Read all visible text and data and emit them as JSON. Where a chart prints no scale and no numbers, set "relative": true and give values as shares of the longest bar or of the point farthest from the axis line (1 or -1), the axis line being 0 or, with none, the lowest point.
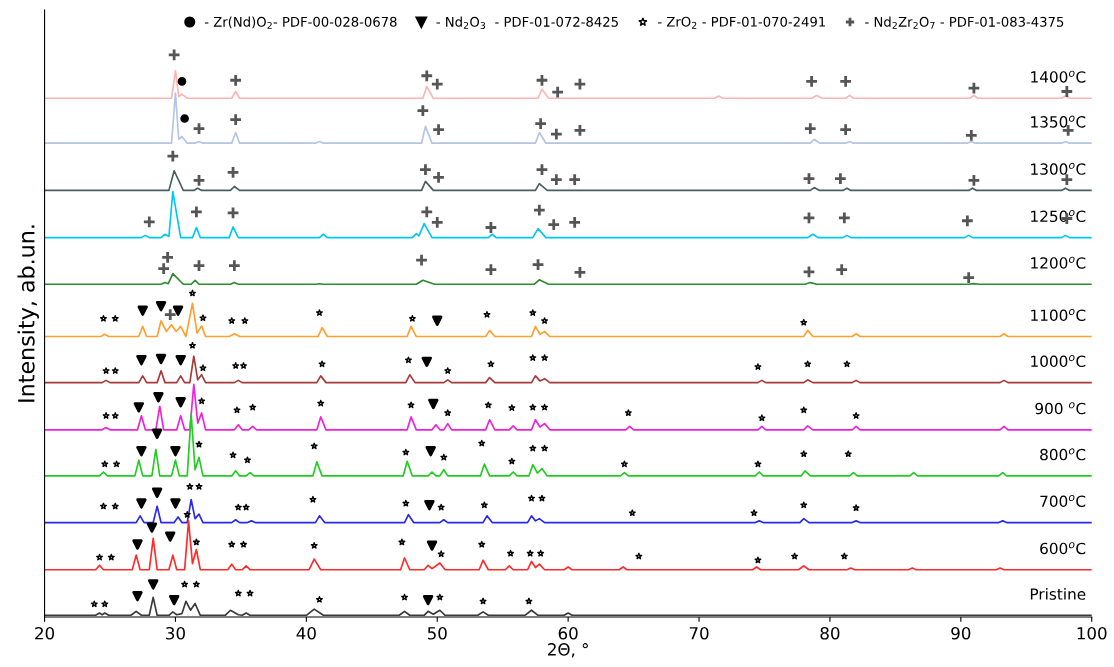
{
  "chart_data": {
    "type": "line",
    "relative": true,
    "xlabel": "2Θ, °",
    "ylabel": "Intensity, ab.un.",
    "xlim": [
      20,
      100
    ],
    "xticks": [
      20,
      30,
      40,
      50,
      60,
      70,
      80,
      90,
      100
    ],
    "grid": false,
    "legend": "top",
    "tick_labels": "x",
    "line_style": "solid",
    "series": [
      {
        "name": "Pristine",
        "color": "#3a3a3a",
        "x": [
          20,
          23.9,
          24.2,
          24.4,
          24.6,
          24.9,
          26.6,
          27.0,
          27.4,
          28.0,
          28.3,
          28.6,
          29.5,
          29.8,
          30.1,
          30.5,
          30.8,
          31.15,
          31.5,
          31.9,
          33.8,
          34.2,
          34.8,
          35.1,
          35.4,
          35.7,
          40.0,
          40.6,
          41.3,
          47.1,
          47.5,
          47.9,
          49.0,
          49.3,
          49.7,
          50.2,
          50.6,
          53.1,
          53.5,
          53.9,
          56.7,
          57.2,
          57.7,
          59.7,
          60.0,
          60.3,
          100
        ],
        "values": [
          0.003,
          0.003,
          0.007,
          0.004,
          0.007,
          0.003,
          0.003,
          0.01,
          0.003,
          0.003,
          0.035,
          0.003,
          0.003,
          0.009,
          0.004,
          0.006,
          0.028,
          0.012,
          0.024,
          0.003,
          0.003,
          0.012,
          0.004,
          0.003,
          0.007,
          0.003,
          0.003,
          0.014,
          0.003,
          0.003,
          0.01,
          0.003,
          0.003,
          0.01,
          0.005,
          0.012,
          0.003,
          0.003,
          0.009,
          0.003,
          0.003,
          0.012,
          0.003,
          0.003,
          0.007,
          0.003,
          0.003
        ]
      },
      {
        "name": "600$^{o}$C",
        "color": "#ff2a2a",
        "x": [
          20,
          23.9,
          24.2,
          24.5,
          26.7,
          27.0,
          27.3,
          28.0,
          28.3,
          28.6,
          29.5,
          29.8,
          30.1,
          30.7,
          31.0,
          31.3,
          31.6,
          31.9,
          34.0,
          34.3,
          34.6,
          35.1,
          35.4,
          35.7,
          40.2,
          40.6,
          41.1,
          47.2,
          47.5,
          47.9,
          49.0,
          49.3,
          49.6,
          50.2,
          50.6,
          53.2,
          53.5,
          53.9,
          55.2,
          55.5,
          55.8,
          56.9,
          57.2,
          57.5,
          57.8,
          58.2,
          59.7,
          60.0,
          60.3,
          63.9,
          64.2,
          64.5,
          74.1,
          74.4,
          74.7,
          77.6,
          78.0,
          78.4,
          81.3,
          81.6,
          81.9,
          86.0,
          86.3,
          86.6,
          92.7,
          93.0,
          93.3,
          100
        ],
        "values": [
          0.084,
          0.084,
          0.092,
          0.084,
          0.084,
          0.11,
          0.084,
          0.084,
          0.14,
          0.084,
          0.084,
          0.11,
          0.084,
          0.084,
          0.171,
          0.095,
          0.12,
          0.084,
          0.084,
          0.094,
          0.084,
          0.084,
          0.091,
          0.084,
          0.084,
          0.103,
          0.084,
          0.084,
          0.105,
          0.084,
          0.084,
          0.092,
          0.086,
          0.096,
          0.084,
          0.084,
          0.101,
          0.084,
          0.084,
          0.091,
          0.084,
          0.084,
          0.099,
          0.088,
          0.094,
          0.084,
          0.084,
          0.089,
          0.084,
          0.084,
          0.089,
          0.084,
          0.084,
          0.089,
          0.084,
          0.084,
          0.091,
          0.084,
          0.084,
          0.087,
          0.084,
          0.084,
          0.087,
          0.084,
          0.084,
          0.087,
          0.084,
          0.084
        ]
      },
      {
        "name": "700$^{o}$C",
        "color": "#2a2ae6",
        "x": [
          20,
          27.0,
          27.3,
          27.6,
          28.3,
          28.6,
          28.9,
          29.9,
          30.2,
          30.5,
          30.9,
          31.2,
          31.5,
          31.8,
          32.1,
          34.3,
          34.6,
          34.9,
          35.5,
          35.8,
          36.1,
          40.7,
          41.0,
          41.4,
          47.5,
          47.8,
          48.2,
          50.2,
          50.5,
          50.8,
          53.5,
          53.8,
          54.2,
          56.9,
          57.2,
          57.5,
          57.8,
          58.2,
          74.3,
          74.6,
          74.9,
          77.7,
          78.0,
          78.4,
          81.7,
          82.0,
          82.3,
          92.9,
          93.2,
          93.5,
          100
        ],
        "values": [
          0.168,
          0.168,
          0.18,
          0.168,
          0.168,
          0.197,
          0.168,
          0.168,
          0.178,
          0.168,
          0.168,
          0.209,
          0.175,
          0.183,
          0.168,
          0.168,
          0.173,
          0.168,
          0.168,
          0.171,
          0.168,
          0.168,
          0.18,
          0.168,
          0.168,
          0.182,
          0.168,
          0.168,
          0.173,
          0.168,
          0.168,
          0.18,
          0.168,
          0.168,
          0.18,
          0.171,
          0.175,
          0.168,
          0.168,
          0.171,
          0.168,
          0.168,
          0.175,
          0.168,
          0.168,
          0.171,
          0.168,
          0.168,
          0.171,
          0.168,
          0.168
        ]
      },
      {
        "name": "800$^{o}$C",
        "color": "#22cc22",
        "x": [
          20,
          24.2,
          24.5,
          24.8,
          26.9,
          27.2,
          27.5,
          28.2,
          28.5,
          28.8,
          29.7,
          30.0,
          30.3,
          30.9,
          31.2,
          31.5,
          31.8,
          32.1,
          34.3,
          34.6,
          34.9,
          35.4,
          35.7,
          36.0,
          40.5,
          40.8,
          41.2,
          47.4,
          47.7,
          48.1,
          49.3,
          49.6,
          49.9,
          50.2,
          50.5,
          50.8,
          53.3,
          53.6,
          54.0,
          55.5,
          55.8,
          56.1,
          57.0,
          57.3,
          57.65,
          58.0,
          58.4,
          64.0,
          64.3,
          64.6,
          74.3,
          74.6,
          74.9,
          77.8,
          78.1,
          78.5,
          81.5,
          81.8,
          82.1,
          86.1,
          86.4,
          86.7,
          92.9,
          93.2,
          93.5,
          100
        ],
        "values": [
          0.251,
          0.251,
          0.258,
          0.251,
          0.251,
          0.279,
          0.251,
          0.251,
          0.298,
          0.251,
          0.251,
          0.279,
          0.251,
          0.251,
          0.361,
          0.262,
          0.284,
          0.251,
          0.251,
          0.26,
          0.251,
          0.251,
          0.257,
          0.251,
          0.251,
          0.276,
          0.251,
          0.251,
          0.277,
          0.251,
          0.251,
          0.258,
          0.251,
          0.251,
          0.262,
          0.251,
          0.251,
          0.272,
          0.251,
          0.251,
          0.258,
          0.251,
          0.251,
          0.271,
          0.256,
          0.264,
          0.251,
          0.251,
          0.257,
          0.251,
          0.251,
          0.258,
          0.251,
          0.251,
          0.26,
          0.251,
          0.251,
          0.257,
          0.251,
          0.251,
          0.257,
          0.251,
          0.251,
          0.257,
          0.251,
          0.251
        ]
      },
      {
        "name": "900 $^{o}$C",
        "color": "#ee22dd",
        "x": [
          20,
          24.4,
          24.7,
          25.0,
          27.1,
          27.4,
          27.7,
          28.5,
          28.8,
          29.1,
          30.1,
          30.4,
          30.7,
          31.1,
          31.4,
          31.7,
          32.0,
          32.3,
          34.5,
          34.8,
          35.1,
          35.6,
          35.9,
          36.2,
          40.8,
          41.1,
          41.5,
          47.7,
          48.0,
          48.4,
          49.6,
          49.9,
          50.2,
          50.5,
          50.8,
          51.1,
          53.7,
          54.0,
          54.4,
          55.5,
          55.8,
          56.1,
          57.2,
          57.5,
          57.85,
          58.2,
          58.6,
          64.4,
          64.7,
          65.0,
          74.5,
          74.8,
          75.1,
          78.0,
          78.3,
          78.7,
          81.7,
          82.0,
          82.3,
          93.0,
          93.3,
          93.6,
          100
        ],
        "values": [
          0.333,
          0.333,
          0.337,
          0.333,
          0.333,
          0.358,
          0.333,
          0.333,
          0.375,
          0.333,
          0.333,
          0.358,
          0.333,
          0.333,
          0.414,
          0.345,
          0.363,
          0.333,
          0.333,
          0.342,
          0.333,
          0.333,
          0.339,
          0.333,
          0.333,
          0.356,
          0.333,
          0.333,
          0.356,
          0.333,
          0.333,
          0.342,
          0.333,
          0.333,
          0.344,
          0.333,
          0.333,
          0.351,
          0.333,
          0.333,
          0.34,
          0.333,
          0.333,
          0.351,
          0.338,
          0.344,
          0.333,
          0.333,
          0.339,
          0.333,
          0.333,
          0.339,
          0.333,
          0.333,
          0.34,
          0.333,
          0.333,
          0.339,
          0.333,
          0.333,
          0.339,
          0.333,
          0.333
        ]
      },
      {
        "name": "1000$^{o}$C",
        "color": "#a83a3a",
        "x": [
          20,
          24.4,
          24.7,
          25.0,
          27.2,
          27.5,
          27.8,
          28.6,
          28.9,
          29.2,
          30.1,
          30.4,
          30.7,
          31.1,
          31.4,
          31.7,
          32.0,
          32.3,
          34.5,
          34.8,
          35.1,
          40.8,
          41.1,
          41.5,
          47.6,
          47.9,
          48.3,
          50.5,
          50.8,
          51.1,
          53.7,
          54.0,
          54.4,
          57.2,
          57.5,
          57.85,
          58.2,
          58.6,
          74.5,
          74.8,
          75.1,
          78.0,
          78.3,
          78.7,
          81.7,
          82.0,
          82.3,
          93.0,
          93.3,
          93.6,
          100
        ],
        "values": [
          0.417,
          0.417,
          0.421,
          0.417,
          0.417,
          0.429,
          0.417,
          0.417,
          0.438,
          0.417,
          0.417,
          0.429,
          0.417,
          0.417,
          0.464,
          0.422,
          0.431,
          0.417,
          0.417,
          0.421,
          0.417,
          0.417,
          0.429,
          0.417,
          0.417,
          0.431,
          0.417,
          0.417,
          0.422,
          0.417,
          0.417,
          0.426,
          0.417,
          0.417,
          0.429,
          0.42,
          0.424,
          0.417,
          0.417,
          0.421,
          0.417,
          0.417,
          0.422,
          0.417,
          0.417,
          0.421,
          0.417,
          0.417,
          0.421,
          0.417,
          0.417
        ]
      },
      {
        "name": "1100$^{o}$C",
        "color": "#ffa030",
        "x": [
          20,
          24.3,
          24.6,
          24.9,
          27.2,
          27.5,
          27.8,
          28.6,
          28.9,
          29.3,
          29.7,
          30.05,
          30.4,
          30.8,
          31.3,
          31.65,
          32.0,
          32.3,
          34.1,
          34.5,
          34.9,
          40.9,
          41.2,
          41.6,
          47.7,
          48.0,
          48.4,
          53.7,
          54.0,
          54.4,
          57.2,
          57.5,
          57.85,
          58.2,
          58.6,
          78.0,
          78.3,
          78.7,
          81.7,
          82.0,
          82.3,
          93.0,
          93.3,
          93.6,
          100
        ],
        "values": [
          0.499,
          0.499,
          0.503,
          0.499,
          0.499,
          0.517,
          0.499,
          0.499,
          0.527,
          0.508,
          0.52,
          0.508,
          0.517,
          0.499,
          0.558,
          0.505,
          0.518,
          0.499,
          0.499,
          0.504,
          0.499,
          0.499,
          0.515,
          0.499,
          0.499,
          0.517,
          0.499,
          0.499,
          0.51,
          0.499,
          0.499,
          0.517,
          0.503,
          0.508,
          0.499,
          0.499,
          0.51,
          0.499,
          0.499,
          0.504,
          0.499,
          0.499,
          0.504,
          0.499,
          0.499
        ]
      },
      {
        "name": "1200$^{o}$C",
        "color": "#2e8b2e",
        "x": [
          20,
          28.9,
          29.2,
          29.45,
          29.8,
          30.6,
          31.2,
          31.5,
          31.8,
          34.2,
          34.5,
          34.8,
          40.7,
          41.0,
          41.3,
          48.4,
          48.9,
          49.8,
          57.4,
          57.8,
          58.5,
          78.1,
          78.5,
          79.0,
          90.6,
          91.0,
          91.4,
          100
        ],
        "values": [
          0.592,
          0.592,
          0.595,
          0.593,
          0.611,
          0.592,
          0.592,
          0.599,
          0.592,
          0.592,
          0.595,
          0.592,
          0.592,
          0.593,
          0.592,
          0.592,
          0.599,
          0.592,
          0.592,
          0.6,
          0.592,
          0.592,
          0.595,
          0.592,
          0.592,
          0.593,
          0.592,
          0.592
        ]
      },
      {
        "name": "1250$^{o}$C",
        "color": "#00c8f0",
        "x": [
          20,
          27.4,
          27.7,
          28.0,
          28.9,
          29.2,
          29.5,
          29.8,
          30.4,
          31.3,
          31.6,
          31.9,
          34.1,
          34.4,
          34.8,
          41.0,
          41.3,
          41.6,
          48.1,
          48.4,
          48.6,
          49.0,
          49.6,
          53.9,
          54.2,
          54.5,
          57.3,
          57.7,
          58.3,
          78.3,
          78.7,
          79.1,
          81.0,
          81.3,
          81.6,
          90.3,
          90.6,
          90.9,
          97.7,
          98.0,
          98.3,
          100
        ],
        "values": [
          0.675,
          0.675,
          0.679,
          0.675,
          0.675,
          0.681,
          0.677,
          0.757,
          0.675,
          0.675,
          0.693,
          0.675,
          0.675,
          0.694,
          0.675,
          0.675,
          0.681,
          0.675,
          0.675,
          0.682,
          0.678,
          0.7,
          0.675,
          0.675,
          0.681,
          0.675,
          0.675,
          0.691,
          0.675,
          0.675,
          0.681,
          0.675,
          0.675,
          0.679,
          0.675,
          0.675,
          0.679,
          0.675,
          0.675,
          0.679,
          0.675,
          0.675
        ]
      },
      {
        "name": "1300$^{o}$C",
        "color": "#4a5e5e",
        "x": [
          20,
          29.5,
          29.9,
          30.6,
          31.4,
          31.7,
          32.0,
          34.2,
          34.5,
          34.9,
          48.8,
          49.1,
          49.7,
          57.5,
          57.8,
          58.4,
          78.5,
          78.8,
          79.2,
          81.0,
          81.3,
          81.6,
          90.6,
          90.9,
          91.2,
          97.7,
          98.0,
          98.3,
          100
        ],
        "values": [
          0.759,
          0.759,
          0.794,
          0.759,
          0.759,
          0.763,
          0.759,
          0.759,
          0.766,
          0.759,
          0.759,
          0.775,
          0.759,
          0.759,
          0.771,
          0.759,
          0.759,
          0.764,
          0.759,
          0.759,
          0.763,
          0.759,
          0.759,
          0.763,
          0.759,
          0.759,
          0.763,
          0.759,
          0.759
        ]
      },
      {
        "name": "1350$^{o}$C",
        "color": "#b4c4e4",
        "x": [
          20,
          29.7,
          30.0,
          30.25,
          30.5,
          30.9,
          31.5,
          31.8,
          32.1,
          34.3,
          34.6,
          34.9,
          40.7,
          41.0,
          41.3,
          48.8,
          49.1,
          49.6,
          57.5,
          57.8,
          58.3,
          78.5,
          78.8,
          79.2,
          81.2,
          81.5,
          81.8,
          90.5,
          90.8,
          91.1,
          97.7,
          98.0,
          98.3,
          100
        ],
        "values": [
          0.843,
          0.843,
          0.932,
          0.85,
          0.855,
          0.843,
          0.843,
          0.846,
          0.843,
          0.843,
          0.862,
          0.843,
          0.843,
          0.846,
          0.843,
          0.843,
          0.873,
          0.843,
          0.843,
          0.862,
          0.843,
          0.843,
          0.85,
          0.843,
          0.843,
          0.846,
          0.843,
          0.843,
          0.846,
          0.843,
          0.843,
          0.846,
          0.843,
          0.843
        ]
      },
      {
        "name": "1400$^{o}$C",
        "color": "#ffb4b4",
        "x": [
          20,
          29.7,
          30.0,
          30.25,
          30.5,
          30.9,
          34.3,
          34.6,
          34.9,
          48.9,
          49.2,
          49.7,
          57.7,
          58.0,
          58.5,
          71.2,
          71.5,
          71.8,
          78.6,
          79.0,
          79.4,
          81.2,
          81.5,
          81.8,
          90.7,
          91.0,
          91.3,
          97.7,
          98.0,
          98.3,
          100
        ],
        "values": [
          0.923,
          0.923,
          0.972,
          0.926,
          0.93,
          0.923,
          0.923,
          0.935,
          0.923,
          0.923,
          0.944,
          0.923,
          0.923,
          0.939,
          0.923,
          0.923,
          0.927,
          0.923,
          0.923,
          0.928,
          0.923,
          0.923,
          0.928,
          0.923,
          0.923,
          0.928,
          0.923,
          0.923,
          0.927,
          0.923,
          0.923
        ]
      },
      {
        "type": "scatter",
        "name": "- Zr(Nd)O$_{2}$- PDF-00-028-0678",
        "color": "#000000",
        "marker": "circle",
        "x": [
          30.5,
          30.7
        ],
        "values": [
          0.953,
          0.887
        ]
      },
      {
        "type": "scatter",
        "name": "- Nd$_{2}$O$_{3}$  - PDF-01-072-8425",
        "color": "#000000",
        "marker": "triangle",
        "x": [
          27.5,
          28.9,
          30.2,
          50.0,
          27.4,
          28.9,
          30.4,
          49.2,
          27.2,
          28.7,
          30.4,
          49.7,
          27.4,
          28.6,
          30.0,
          49.5,
          27.4,
          28.6,
          30.0,
          49.4,
          27.1,
          28.2,
          29.6,
          49.6,
          27.1,
          28.3,
          29.9,
          49.3
        ],
        "values": [
          0.545,
          0.553,
          0.545,
          0.527,
          0.457,
          0.459,
          0.457,
          0.454,
          0.373,
          0.391,
          0.382,
          0.379,
          0.295,
          0.326,
          0.295,
          0.295,
          0.202,
          0.221,
          0.202,
          0.199,
          0.129,
          0.159,
          0.143,
          0.127,
          0.037,
          0.058,
          0.03,
          0.03
        ]
      },
      {
        "type": "scatter",
        "name": "- ZrO$_{2}$ - PDF-01-070-2491",
        "color": "#000000",
        "marker": "star",
        "x": [
          24.5,
          25.4,
          31.3,
          32.1,
          34.3,
          35.3,
          41.0,
          48.1,
          53.8,
          57.3,
          58.2,
          78.0,
          24.7,
          25.4,
          31.3,
          32.1,
          34.6,
          35.2,
          41.2,
          47.8,
          50.8,
          54.1,
          57.3,
          58.2,
          74.5,
          78.3,
          81.3,
          24.7,
          25.4,
          32.0,
          34.7,
          35.9,
          41.1,
          48.0,
          50.8,
          53.9,
          55.7,
          57.3,
          58.2,
          64.6,
          74.8,
          78.0,
          82.0,
          24.6,
          25.5,
          31.8,
          34.4,
          35.5,
          40.6,
          47.6,
          50.5,
          53.4,
          55.7,
          57.3,
          58.2,
          64.3,
          74.5,
          78.0,
          81.4,
          24.5,
          25.4,
          31.1,
          31.8,
          34.8,
          35.4,
          40.5,
          47.6,
          50.3,
          53.6,
          57.2,
          58.0,
          64.9,
          74.2,
          78.0,
          82.0,
          24.2,
          25.1,
          30.9,
          31.6,
          34.3,
          35.2,
          40.6,
          47.3,
          50.3,
          53.4,
          55.6,
          57.1,
          57.9,
          65.4,
          74.5,
          77.3,
          81.1,
          23.8,
          24.6,
          30.7,
          31.6,
          34.8,
          35.7,
          41.0,
          47.5,
          50.2,
          53.5,
          57.0
        ],
        "values": [
          0.531,
          0.531,
          0.576,
          0.532,
          0.527,
          0.527,
          0.541,
          0.531,
          0.538,
          0.541,
          0.527,
          0.524,
          0.438,
          0.438,
          0.483,
          0.443,
          0.447,
          0.447,
          0.45,
          0.457,
          0.438,
          0.45,
          0.461,
          0.461,
          0.445,
          0.45,
          0.45,
          0.358,
          0.358,
          0.384,
          0.368,
          0.373,
          0.38,
          0.377,
          0.363,
          0.377,
          0.372,
          0.373,
          0.373,
          0.363,
          0.354,
          0.368,
          0.358,
          0.272,
          0.272,
          0.307,
          0.288,
          0.279,
          0.304,
          0.293,
          0.284,
          0.309,
          0.277,
          0.3,
          0.3,
          0.272,
          0.272,
          0.29,
          0.29,
          0.197,
          0.197,
          0.232,
          0.232,
          0.195,
          0.195,
          0.209,
          0.202,
          0.195,
          0.199,
          0.211,
          0.211,
          0.185,
          0.185,
          0.199,
          0.194,
          0.106,
          0.106,
          0.182,
          0.133,
          0.129,
          0.129,
          0.127,
          0.133,
          0.112,
          0.129,
          0.113,
          0.113,
          0.113,
          0.108,
          0.101,
          0.108,
          0.108,
          0.023,
          0.023,
          0.058,
          0.058,
          0.042,
          0.042,
          0.031,
          0.035,
          0.035,
          0.028,
          0.028
        ]
      },
      {
        "type": "scatter",
        "name": "- Nd$_{2}$Zr$_{2}$O$_{7}$ - PDF-01-083-4375",
        "color": "#555555",
        "marker": "cross",
        "x": [
          29.9,
          34.6,
          49.2,
          50.0,
          58.0,
          59.2,
          60.9,
          78.6,
          81.2,
          91.0,
          98.1,
          31.8,
          34.6,
          48.9,
          50.1,
          57.9,
          59.1,
          60.9,
          78.5,
          81.2,
          90.8,
          98.2,
          29.8,
          31.8,
          34.4,
          49.1,
          50.1,
          58.0,
          59.1,
          60.5,
          78.4,
          80.8,
          91.0,
          98.1,
          28.0,
          31.6,
          34.4,
          49.2,
          50.0,
          54.1,
          57.8,
          58.9,
          60.5,
          78.4,
          81.1,
          90.5,
          98.1,
          29.1,
          29.4,
          31.8,
          34.5,
          48.8,
          54.1,
          57.7,
          60.9,
          78.4,
          80.9,
          90.6,
          29.6
        ],
        "values": [
          1.0,
          0.955,
          0.963,
          0.948,
          0.955,
          0.934,
          0.948,
          0.953,
          0.953,
          0.941,
          0.935,
          0.869,
          0.885,
          0.901,
          0.867,
          0.878,
          0.859,
          0.866,
          0.869,
          0.867,
          0.857,
          0.866,
          0.82,
          0.777,
          0.791,
          0.796,
          0.782,
          0.796,
          0.778,
          0.778,
          0.78,
          0.78,
          0.777,
          0.778,
          0.703,
          0.721,
          0.719,
          0.721,
          0.702,
          0.693,
          0.724,
          0.698,
          0.702,
          0.71,
          0.71,
          0.705,
          0.709,
          0.62,
          0.64,
          0.625,
          0.625,
          0.635,
          0.618,
          0.627,
          0.613,
          0.614,
          0.618,
          0.604,
          0.538
        ]
      }
    ]
  }
}
